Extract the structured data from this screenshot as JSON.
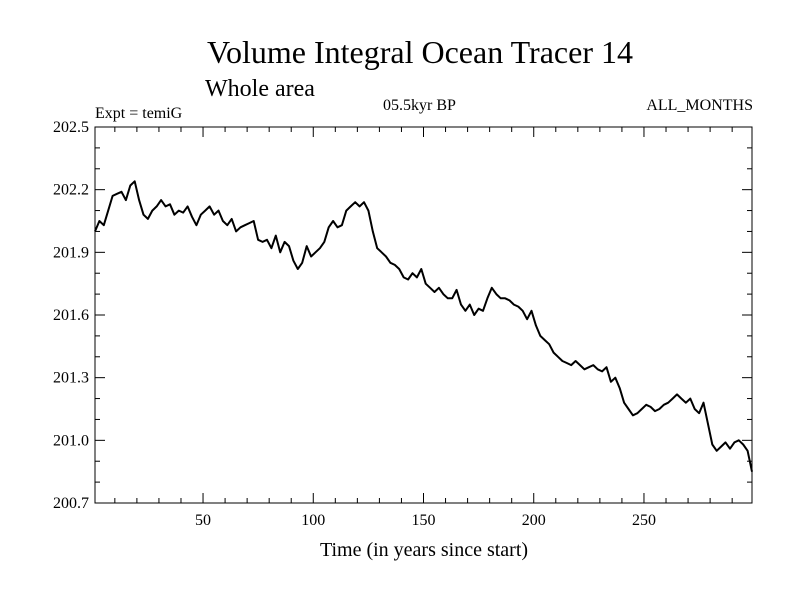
{
  "header": {
    "title": "Volume Integral Ocean Tracer 14",
    "subtitle": "Whole area",
    "expt_label": "Expt = temiG",
    "period_label": "05.5kyr BP",
    "months_label": "ALL_MONTHS"
  },
  "chart_data": {
    "type": "line",
    "title": "Volume Integral Ocean Tracer 14",
    "xlabel": "Time (in years since start)",
    "ylabel": "",
    "xlim": [
      1,
      299
    ],
    "ylim": [
      200.7,
      202.5
    ],
    "grid": false,
    "legend": "none",
    "line_color": "#000000",
    "x_ticks": [
      50,
      100,
      150,
      200,
      250
    ],
    "y_ticks": [
      200.7,
      201.0,
      201.3,
      201.6,
      201.9,
      202.2,
      202.5
    ],
    "series": [
      {
        "x": [
          1,
          3,
          5,
          7,
          9,
          11,
          13,
          15,
          17,
          19,
          21,
          23,
          25,
          27,
          29,
          31,
          33,
          35,
          37,
          39,
          41,
          43,
          45,
          47,
          49,
          51,
          53,
          55,
          57,
          59,
          61,
          63,
          65,
          67,
          69,
          71,
          73,
          75,
          77,
          79,
          81,
          83,
          85,
          87,
          89,
          91,
          93,
          95,
          97,
          99,
          101,
          103,
          105,
          107,
          109,
          111,
          113,
          115,
          117,
          119,
          121,
          123,
          125,
          127,
          129,
          131,
          133,
          135,
          137,
          139,
          141,
          143,
          145,
          147,
          149,
          151,
          153,
          155,
          157,
          159,
          161,
          163,
          165,
          167,
          169,
          171,
          173,
          175,
          177,
          179,
          181,
          183,
          185,
          187,
          189,
          191,
          193,
          195,
          197,
          199,
          201,
          203,
          205,
          207,
          209,
          211,
          213,
          215,
          217,
          219,
          221,
          223,
          225,
          227,
          229,
          231,
          233,
          235,
          237,
          239,
          241,
          243,
          245,
          247,
          249,
          251,
          253,
          255,
          257,
          259,
          261,
          263,
          265,
          267,
          269,
          271,
          273,
          275,
          277,
          279,
          281,
          283,
          285,
          287,
          289,
          291,
          293,
          295,
          297,
          299
        ],
        "values": [
          202.0,
          202.05,
          202.03,
          202.1,
          202.17,
          202.18,
          202.19,
          202.15,
          202.22,
          202.24,
          202.15,
          202.08,
          202.06,
          202.1,
          202.12,
          202.15,
          202.12,
          202.13,
          202.08,
          202.1,
          202.09,
          202.12,
          202.07,
          202.03,
          202.08,
          202.1,
          202.12,
          202.08,
          202.1,
          202.05,
          202.03,
          202.06,
          202.0,
          202.02,
          202.03,
          202.04,
          202.05,
          201.96,
          201.95,
          201.96,
          201.92,
          201.98,
          201.9,
          201.95,
          201.93,
          201.86,
          201.82,
          201.85,
          201.93,
          201.88,
          201.9,
          201.92,
          201.95,
          202.02,
          202.05,
          202.02,
          202.03,
          202.1,
          202.12,
          202.14,
          202.12,
          202.14,
          202.1,
          202.0,
          201.92,
          201.9,
          201.88,
          201.85,
          201.84,
          201.82,
          201.78,
          201.77,
          201.8,
          201.78,
          201.82,
          201.75,
          201.73,
          201.71,
          201.73,
          201.7,
          201.68,
          201.68,
          201.72,
          201.65,
          201.62,
          201.65,
          201.6,
          201.63,
          201.62,
          201.68,
          201.73,
          201.7,
          201.68,
          201.68,
          201.67,
          201.65,
          201.64,
          201.62,
          201.58,
          201.62,
          201.55,
          201.5,
          201.48,
          201.46,
          201.42,
          201.4,
          201.38,
          201.37,
          201.36,
          201.38,
          201.36,
          201.34,
          201.35,
          201.36,
          201.34,
          201.33,
          201.35,
          201.28,
          201.3,
          201.25,
          201.18,
          201.15,
          201.12,
          201.13,
          201.15,
          201.17,
          201.16,
          201.14,
          201.15,
          201.17,
          201.18,
          201.2,
          201.22,
          201.2,
          201.18,
          201.2,
          201.15,
          201.13,
          201.18,
          201.08,
          200.98,
          200.95,
          200.97,
          200.99,
          200.96,
          200.99,
          201.0,
          200.98,
          200.95,
          200.85
        ]
      }
    ]
  }
}
